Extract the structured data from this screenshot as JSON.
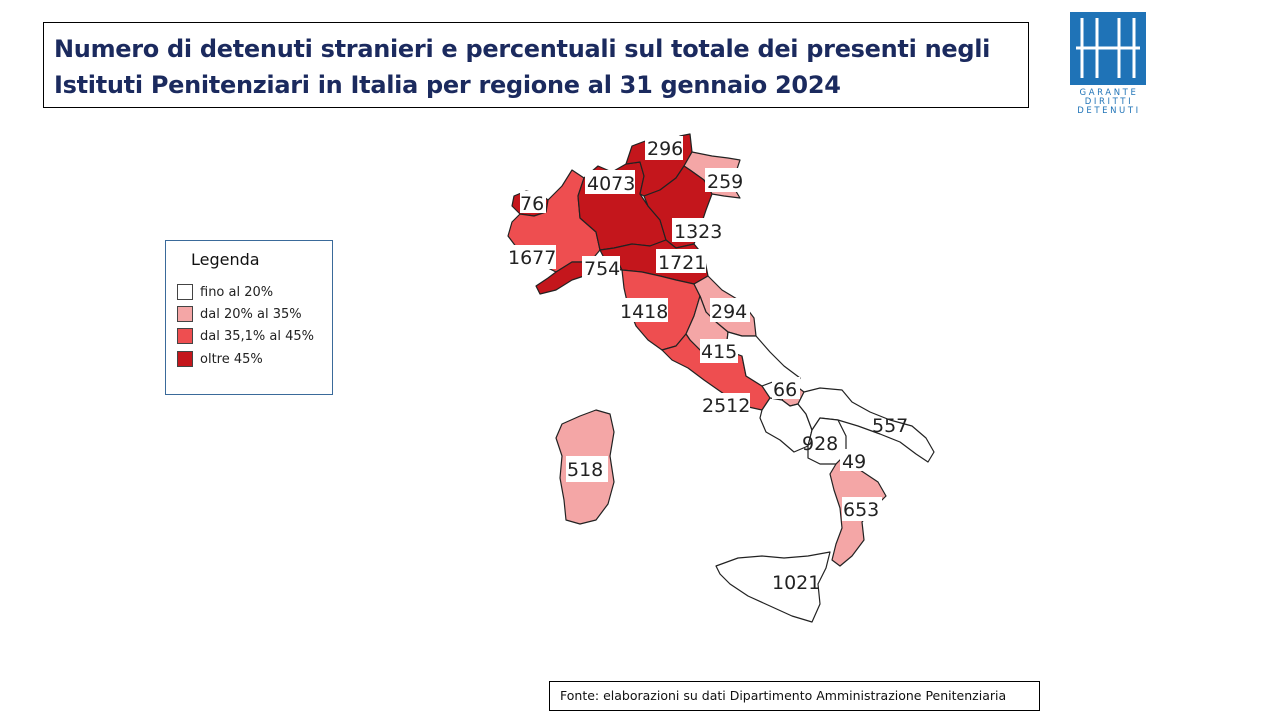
{
  "title": {
    "line1": "Numero di detenuti stranieri e percentuali sul totale dei presenti negli",
    "line2": "Istituti Penitenziari in Italia  per regione al 31 gennaio 2024"
  },
  "logo": {
    "lines": [
      "GARANTE",
      "DIRITTI",
      "DETENUTI"
    ],
    "color": "#1f73b7"
  },
  "legend": {
    "title": "Legenda",
    "items": [
      {
        "label": "fino al 20%",
        "color": "#ffffff"
      },
      {
        "label": "dal 20% al 35%",
        "color": "#f4a6a6"
      },
      {
        "label": "dal 35,1% al 45%",
        "color": "#ee4e50"
      },
      {
        "label": "oltre 45%",
        "color": "#c4161c"
      }
    ]
  },
  "regions": [
    {
      "value": "296",
      "color": "#c4161c"
    },
    {
      "value": "4073",
      "color": "#c4161c"
    },
    {
      "value": "259",
      "color": "#f4a6a6"
    },
    {
      "value": "76",
      "color": "#c4161c"
    },
    {
      "value": "1323",
      "color": "#c4161c"
    },
    {
      "value": "1677",
      "color": "#ee4e50"
    },
    {
      "value": "754",
      "color": "#c4161c"
    },
    {
      "value": "1721",
      "color": "#c4161c"
    },
    {
      "value": "1418",
      "color": "#ee4e50"
    },
    {
      "value": "294",
      "color": "#f4a6a6"
    },
    {
      "value": "415",
      "color": "#f4a6a6"
    },
    {
      "value": "66",
      "color": "#f4a6a6"
    },
    {
      "value": "2512",
      "color": "#ee4e50"
    },
    {
      "value": "557",
      "color": "#ffffff"
    },
    {
      "value": "928",
      "color": "#ffffff"
    },
    {
      "value": "49",
      "color": "#ffffff"
    },
    {
      "value": "518",
      "color": "#f4a6a6"
    },
    {
      "value": "653",
      "color": "#f4a6a6"
    },
    {
      "value": "1021",
      "color": "#ffffff"
    }
  ],
  "source": "Fonte: elaborazioni su dati Dipartimento Amministrazione Penitenziaria"
}
